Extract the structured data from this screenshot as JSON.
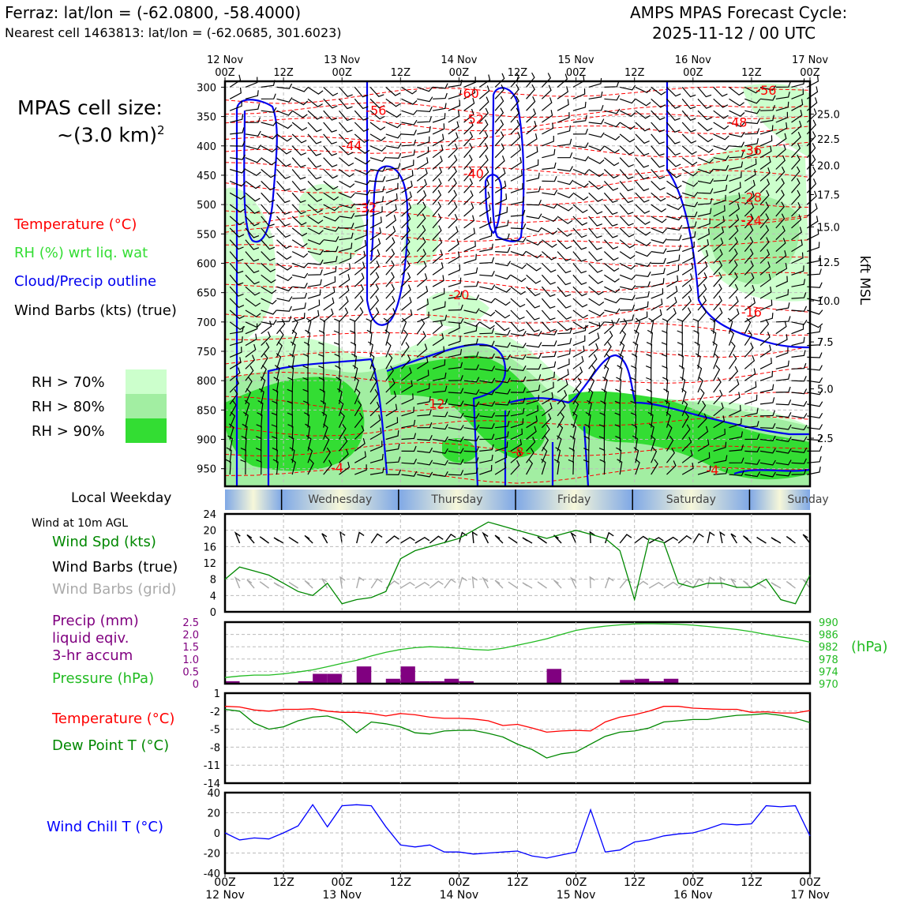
{
  "header": {
    "location_line": "Ferraz: lat/lon = (-62.0800, -58.4000)",
    "cell_line": "Nearest cell 1463813: lat/lon = (-62.0685, 301.6023)",
    "model_line": "AMPS MPAS Forecast Cycle:",
    "cycle_line": "2025-11-12 / 00 UTC",
    "cell_size_label": "MPAS cell size:",
    "cell_size_value": "~(3.0 km)",
    "cell_size_exp": "2"
  },
  "legend_upper": {
    "temperature": "Temperature (°C)",
    "rh": "RH (%) wrt liq. wat",
    "cloud": "Cloud/Precip outline",
    "wind": "Wind Barbs (kts) (true)",
    "rh70": "RH > 70%",
    "rh80": "RH > 80%",
    "rh90": "RH > 90%"
  },
  "legend_wind": {
    "title": "Wind at 10m AGL",
    "spd": "Wind Spd (kts)",
    "barbs_true": "Wind Barbs (true)",
    "barbs_grid": "Wind Barbs (grid)"
  },
  "legend_precip": {
    "p1": "Precip (mm)",
    "p2": "liquid eqiv.",
    "p3": "3-hr accum",
    "pressure": "Pressure (hPa)",
    "hpa": "(hPa)"
  },
  "legend_temp": {
    "t": "Temperature (°C)",
    "td": "Dew Point T (°C)"
  },
  "legend_chill": {
    "wc": "Wind Chill T (°C)"
  },
  "weekday": {
    "label": "Local Weekday",
    "days": [
      "Wednesday",
      "Thursday",
      "Friday",
      "Saturday",
      "Sunday"
    ]
  },
  "colors": {
    "rh70": "#ccffcc",
    "rh80": "#a2eea2",
    "rh90": "#33dd33",
    "temperature": "#ff0000",
    "cloud": "#0000ee",
    "dewpoint": "#008800",
    "pressure": "#22bb22",
    "precip": "#800080",
    "windchill": "#0000ff",
    "grid_barb": "#aaaaaa"
  },
  "chart_data": [
    {
      "type": "heatmap",
      "name_hint": "time-height cross section",
      "x_ticks_top": [
        [
          "12 Nov",
          "00Z"
        ],
        [
          "",
          "12Z"
        ],
        [
          "13 Nov",
          "00Z"
        ],
        [
          "",
          "12Z"
        ],
        [
          "14 Nov",
          "00Z"
        ],
        [
          "",
          "12Z"
        ],
        [
          "15 Nov",
          "00Z"
        ],
        [
          "",
          "12Z"
        ],
        [
          "16 Nov",
          "00Z"
        ],
        [
          "",
          "12Z"
        ],
        [
          "17 Nov",
          "00Z"
        ]
      ],
      "x_range_hours": [
        0,
        120
      ],
      "ylabel_right": "kft MSL",
      "y_pressure_ticks": [
        300,
        350,
        400,
        450,
        500,
        550,
        600,
        650,
        700,
        750,
        800,
        850,
        900,
        950
      ],
      "y_range_hpa": [
        290,
        980
      ],
      "kft_ticks": [
        {
          "label": "25.0",
          "hpa": 346
        },
        {
          "label": "22.5",
          "hpa": 388
        },
        {
          "label": "20.0",
          "hpa": 433
        },
        {
          "label": "17.5",
          "hpa": 483
        },
        {
          "label": "15.0",
          "hpa": 538
        },
        {
          "label": "12.5",
          "hpa": 598
        },
        {
          "label": "10.0",
          "hpa": 664
        },
        {
          "label": "7.5",
          "hpa": 734
        },
        {
          "label": "5.0",
          "hpa": 814
        },
        {
          "label": "2.5",
          "hpa": 898
        }
      ],
      "temperature_contour_labels": [
        {
          "label": "-60",
          "t": 50,
          "p": 310
        },
        {
          "label": "-56",
          "t": 31,
          "p": 339
        },
        {
          "label": "-56",
          "t": 111,
          "p": 305
        },
        {
          "label": "-52",
          "t": 51,
          "p": 354
        },
        {
          "label": "-48",
          "t": 105,
          "p": 359
        },
        {
          "label": "-44",
          "t": 26,
          "p": 399
        },
        {
          "label": "-40",
          "t": 51,
          "p": 447
        },
        {
          "label": "-36",
          "t": 108,
          "p": 407
        },
        {
          "label": "-32",
          "t": 29,
          "p": 505
        },
        {
          "label": "-28",
          "t": 108,
          "p": 487
        },
        {
          "label": "-24",
          "t": 108,
          "p": 527
        },
        {
          "label": "-20",
          "t": 48,
          "p": 653
        },
        {
          "label": "-16",
          "t": 108,
          "p": 683
        },
        {
          "label": "-12",
          "t": 43,
          "p": 839
        },
        {
          "label": "-8",
          "t": 60,
          "p": 921
        },
        {
          "label": "-4",
          "t": 23,
          "p": 948
        },
        {
          "label": "-4",
          "t": 100,
          "p": 952
        }
      ]
    },
    {
      "type": "line",
      "name_hint": "10m wind speed",
      "x_hours": [
        0,
        3,
        6,
        9,
        12,
        15,
        18,
        21,
        24,
        27,
        30,
        33,
        36,
        39,
        42,
        45,
        48,
        51,
        54,
        57,
        60,
        63,
        66,
        69,
        72,
        75,
        78,
        81,
        84,
        87,
        90,
        93,
        96,
        99,
        102,
        105,
        108,
        111,
        114,
        117,
        120
      ],
      "series": [
        {
          "name": "Wind Spd (kts)",
          "values": [
            8,
            11,
            10,
            9,
            7,
            5,
            4,
            7,
            2,
            3,
            3.5,
            5,
            13,
            15,
            16,
            17,
            18,
            20,
            22,
            21,
            20,
            19,
            18,
            19,
            20,
            19,
            18,
            15,
            3,
            18,
            17,
            7,
            6,
            7,
            7,
            6,
            6,
            8,
            3,
            2,
            9
          ]
        }
      ],
      "ylim": [
        0,
        24
      ],
      "y_ticks": [
        0,
        4,
        8,
        12,
        16,
        20,
        24
      ]
    },
    {
      "type": "bar",
      "name_hint": "3-hr precipitation with pressure line",
      "x_hours": [
        0,
        3,
        6,
        9,
        12,
        15,
        18,
        21,
        24,
        27,
        30,
        33,
        36,
        39,
        42,
        45,
        48,
        51,
        54,
        57,
        60,
        63,
        66,
        69,
        72,
        75,
        78,
        81,
        84,
        87,
        90,
        93,
        96,
        99,
        102,
        105,
        108,
        111,
        114,
        117,
        120
      ],
      "series": [
        {
          "name": "Precip (mm)",
          "values": [
            0.1,
            0,
            0,
            0,
            0,
            0.1,
            0.4,
            0.4,
            0,
            0.7,
            0,
            0.2,
            0.7,
            0.1,
            0.1,
            0.2,
            0.1,
            0,
            0,
            0,
            0,
            0,
            0.6,
            0,
            0,
            0,
            0,
            0.15,
            0.2,
            0.1,
            0.2,
            0,
            0,
            0,
            0,
            0,
            0,
            0,
            0,
            0,
            0
          ]
        },
        {
          "name": "Pressure (hPa)",
          "values": [
            972,
            972.5,
            972.8,
            972.8,
            973.2,
            973.8,
            974.5,
            975.5,
            976.6,
            977.6,
            979,
            980.2,
            981.1,
            981.7,
            982,
            981.8,
            981.5,
            981.1,
            980.9,
            981.5,
            982.5,
            983.5,
            984.6,
            986,
            987.3,
            988.1,
            988.7,
            989.1,
            989.4,
            989.5,
            989.4,
            989.3,
            989,
            988.6,
            988.1,
            987.6,
            986.9,
            986,
            985.2,
            984.5,
            983.5
          ]
        }
      ],
      "y_ticks_left": [
        "0",
        "0.5",
        "1.0",
        "1.5",
        "2.0",
        "2.5"
      ],
      "ylim_left": [
        0,
        2.5
      ],
      "y_ticks_right": [
        "970",
        "974",
        "978",
        "982",
        "986",
        "990"
      ],
      "ylim_right": [
        970,
        990
      ]
    },
    {
      "type": "line",
      "name_hint": "temperature and dew point",
      "x_hours": [
        0,
        3,
        6,
        9,
        12,
        15,
        18,
        21,
        24,
        27,
        30,
        33,
        36,
        39,
        42,
        45,
        48,
        51,
        54,
        57,
        60,
        63,
        66,
        69,
        72,
        75,
        78,
        81,
        84,
        87,
        90,
        93,
        96,
        99,
        102,
        105,
        108,
        111,
        114,
        117,
        120
      ],
      "series": [
        {
          "name": "Temperature (°C)",
          "values": [
            -1.2,
            -1.3,
            -1.8,
            -2,
            -1.7,
            -1.7,
            -1.6,
            -2,
            -2.2,
            -2.2,
            -2.4,
            -2.8,
            -2.4,
            -2.6,
            -3,
            -3.2,
            -3.2,
            -3.3,
            -3.6,
            -4.4,
            -4.2,
            -4.8,
            -5.5,
            -5.3,
            -5.2,
            -5.3,
            -3.8,
            -3,
            -2.6,
            -2,
            -1.2,
            -1.2,
            -1.5,
            -1.6,
            -1.7,
            -1.7,
            -2.2,
            -2.1,
            -2.3,
            -2.3,
            -1.9
          ]
        },
        {
          "name": "Dew Point T (°C)",
          "values": [
            -1.7,
            -2,
            -4,
            -5,
            -4.6,
            -3.6,
            -3,
            -2.8,
            -3.5,
            -5.6,
            -3.8,
            -4.1,
            -4.6,
            -5.6,
            -5.8,
            -5.3,
            -5.2,
            -5.2,
            -5.7,
            -6.3,
            -7.5,
            -8.4,
            -9.8,
            -9.1,
            -8.8,
            -7.5,
            -6.2,
            -5.5,
            -5.3,
            -4.8,
            -3.8,
            -3.6,
            -3.4,
            -3.4,
            -3,
            -2.7,
            -2.6,
            -2.4,
            -2.7,
            -3.2,
            -3.9
          ]
        }
      ],
      "ylim": [
        -14,
        1
      ],
      "y_ticks": [
        1,
        -2,
        -5,
        -8,
        -11,
        -14
      ],
      "y_tick_labels": [
        "1",
        "-2",
        "-5",
        "-8",
        "-11",
        "-14"
      ]
    },
    {
      "type": "line",
      "name_hint": "wind chill",
      "x_hours": [
        0,
        3,
        6,
        9,
        12,
        15,
        18,
        21,
        24,
        27,
        30,
        33,
        36,
        39,
        42,
        45,
        48,
        51,
        54,
        57,
        60,
        63,
        66,
        69,
        72,
        75,
        78,
        81,
        84,
        87,
        90,
        93,
        96,
        99,
        102,
        105,
        108,
        111,
        114,
        117,
        120
      ],
      "series": [
        {
          "name": "Wind Chill T (°C)",
          "values": [
            0,
            -7,
            -5,
            -6,
            0,
            7,
            28,
            6,
            27,
            28,
            27,
            6,
            -12,
            -14,
            -12,
            -19,
            -19,
            -21,
            -20,
            -19,
            -18,
            -23,
            -25,
            -22,
            -19,
            23,
            -19,
            -17,
            -9,
            -7,
            -3,
            -1,
            0,
            4,
            9,
            8,
            9,
            27,
            26,
            27,
            -3
          ]
        }
      ],
      "ylim": [
        -40,
        40
      ],
      "y_ticks": [
        40,
        20,
        0,
        -20,
        -40
      ]
    }
  ],
  "x_ticks_bottom": [
    [
      "00Z",
      "12 Nov"
    ],
    [
      "12Z",
      ""
    ],
    [
      "00Z",
      "13 Nov"
    ],
    [
      "12Z",
      ""
    ],
    [
      "00Z",
      "14 Nov"
    ],
    [
      "12Z",
      ""
    ],
    [
      "00Z",
      "15 Nov"
    ],
    [
      "12Z",
      ""
    ],
    [
      "00Z",
      "16 Nov"
    ],
    [
      "12Z",
      ""
    ],
    [
      "00Z",
      "17 Nov"
    ]
  ]
}
